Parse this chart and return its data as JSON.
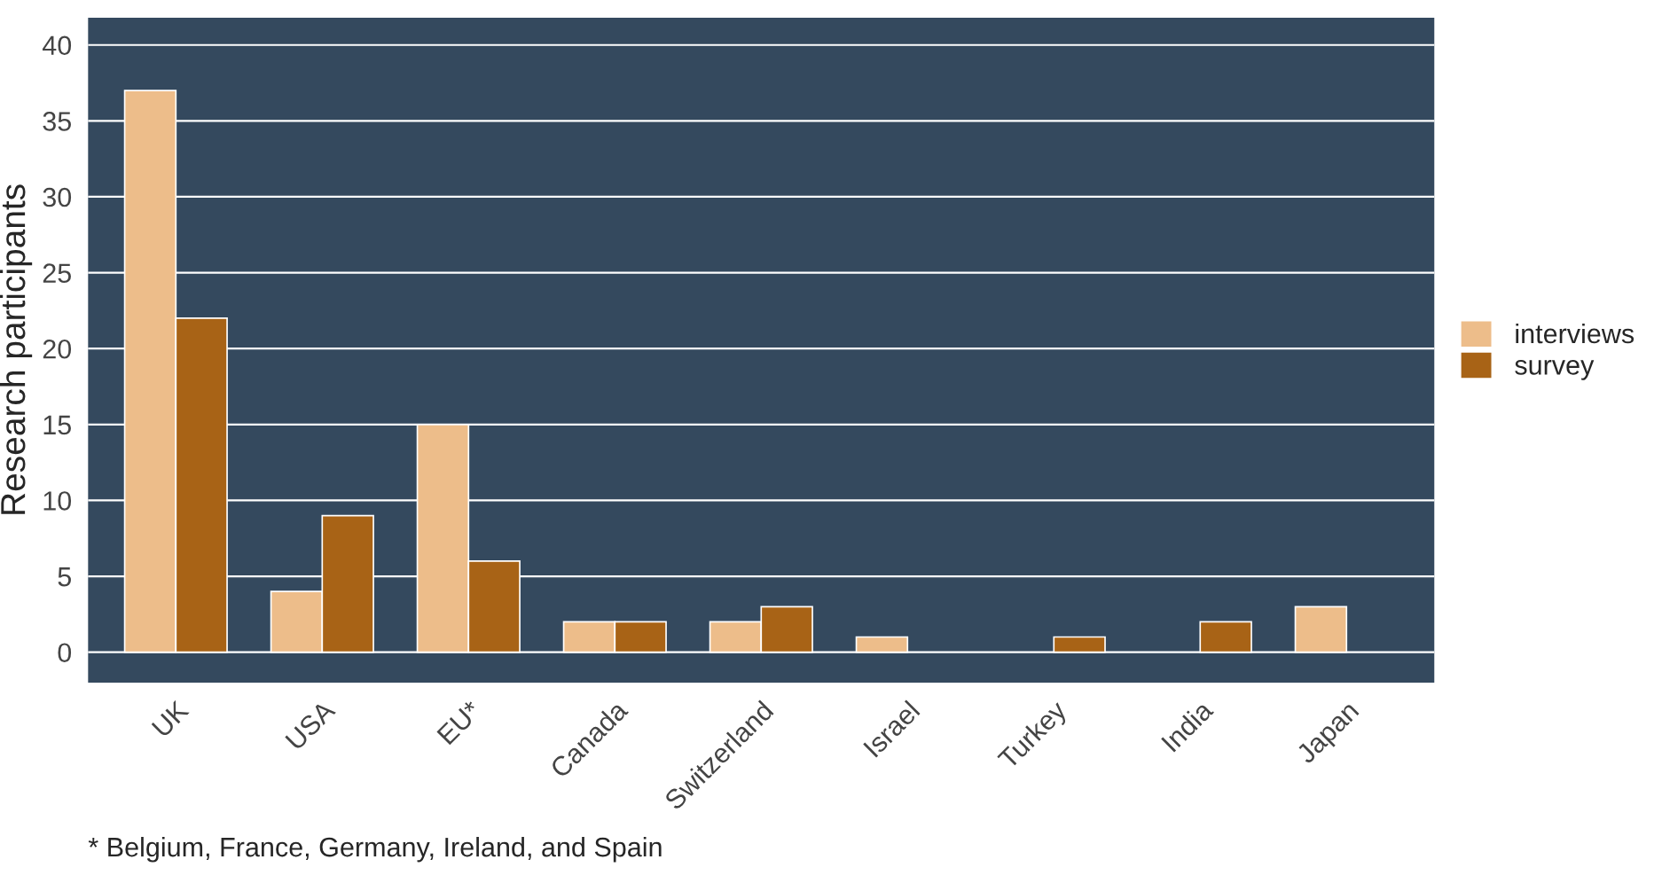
{
  "chart_data": {
    "type": "bar",
    "ylabel": "Research participants",
    "categories": [
      "UK",
      "USA",
      "EU*",
      "Canada",
      "Switzerland",
      "Israel",
      "Turkey",
      "India",
      "Japan"
    ],
    "series": [
      {
        "name": "interviews",
        "color": "#edbd8a",
        "values": [
          37,
          4,
          15,
          2,
          2,
          1,
          null,
          null,
          3
        ]
      },
      {
        "name": "survey",
        "color": "#a86316",
        "values": [
          22,
          9,
          6,
          2,
          3,
          null,
          1,
          2,
          null
        ]
      }
    ],
    "ylim": [
      -2,
      41.8
    ],
    "yticks": [
      0,
      5,
      10,
      15,
      20,
      25,
      30,
      35,
      40
    ],
    "grid": "y",
    "legend": "right",
    "annotations": [
      "* Belgium, France, Germany, Ireland, and Spain"
    ]
  }
}
